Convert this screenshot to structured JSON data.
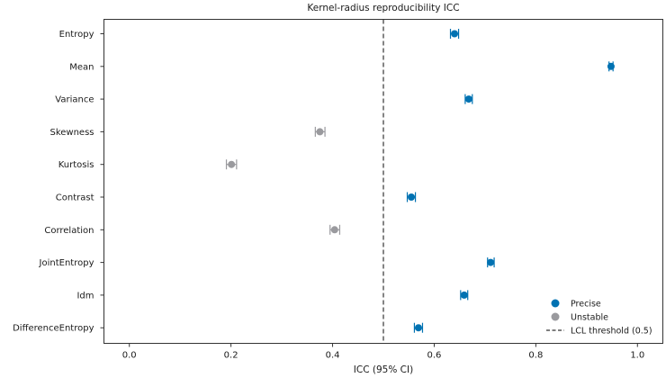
{
  "chart_data": {
    "type": "scatter",
    "subtype": "forest-plot",
    "title": "Kernel-radius reproducibility ICC",
    "xlabel": "ICC (95% CI)",
    "ylabel": "",
    "xlim": [
      -0.05,
      1.05
    ],
    "xticks": [
      "0.0",
      "0.2",
      "0.4",
      "0.6",
      "0.8",
      "1.0"
    ],
    "xtick_values": [
      0.0,
      0.2,
      0.4,
      0.6,
      0.8,
      1.0
    ],
    "grid": false,
    "legend_position": "bottom-right",
    "threshold": {
      "value": 0.5,
      "label": "LCL threshold (0.5)",
      "color": "#333333",
      "style": "dashed"
    },
    "series": [
      {
        "name": "Precise",
        "color": "#0072b2"
      },
      {
        "name": "Unstable",
        "color": "#9a9a9e"
      }
    ],
    "points": [
      {
        "feature": "Entropy",
        "icc": 0.64,
        "lower": 0.632,
        "upper": 0.648,
        "series": "Precise"
      },
      {
        "feature": "Mean",
        "icc": 0.948,
        "lower": 0.944,
        "upper": 0.952,
        "series": "Precise"
      },
      {
        "feature": "Variance",
        "icc": 0.668,
        "lower": 0.661,
        "upper": 0.675,
        "series": "Precise"
      },
      {
        "feature": "Skewness",
        "icc": 0.375,
        "lower": 0.366,
        "upper": 0.385,
        "series": "Unstable"
      },
      {
        "feature": "Kurtosis",
        "icc": 0.201,
        "lower": 0.191,
        "upper": 0.211,
        "series": "Unstable"
      },
      {
        "feature": "Contrast",
        "icc": 0.555,
        "lower": 0.547,
        "upper": 0.563,
        "series": "Precise"
      },
      {
        "feature": "Correlation",
        "icc": 0.404,
        "lower": 0.395,
        "upper": 0.414,
        "series": "Unstable"
      },
      {
        "feature": "JointEntropy",
        "icc": 0.711,
        "lower": 0.705,
        "upper": 0.718,
        "series": "Precise"
      },
      {
        "feature": "Idm",
        "icc": 0.659,
        "lower": 0.652,
        "upper": 0.666,
        "series": "Precise"
      },
      {
        "feature": "DifferenceEntropy",
        "icc": 0.569,
        "lower": 0.561,
        "upper": 0.577,
        "series": "Precise"
      }
    ]
  }
}
